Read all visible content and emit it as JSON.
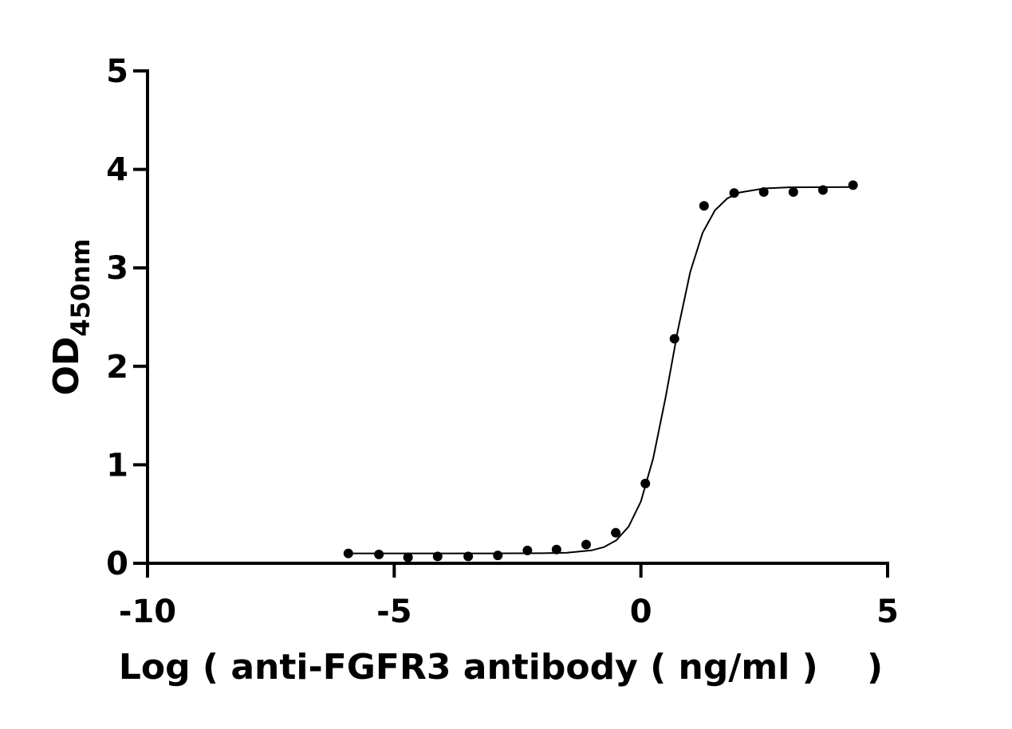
{
  "chart_data": {
    "type": "scatter",
    "x_label": "Log ( anti-FGFR3 antibody ( ng/ml )    )",
    "y_label": "OD",
    "y_label_sub": "450nm",
    "xlim": [
      -10,
      5
    ],
    "xticks": [
      -10,
      -5,
      0,
      5
    ],
    "ylim": [
      0,
      5
    ],
    "yticks": [
      0,
      1,
      2,
      3,
      4,
      5
    ],
    "series": [
      {
        "mode": "markers",
        "color": "#000000",
        "x": [
          -5.93,
          -5.31,
          -4.72,
          -4.12,
          -3.5,
          -2.9,
          -2.3,
          -1.71,
          -1.11,
          -0.51,
          0.09,
          0.68,
          1.28,
          1.89,
          2.49,
          3.09,
          3.69,
          4.3
        ],
        "values": [
          0.1,
          0.09,
          0.06,
          0.07,
          0.07,
          0.08,
          0.13,
          0.14,
          0.19,
          0.31,
          0.81,
          2.28,
          3.63,
          3.76,
          3.77,
          3.77,
          3.79,
          3.84
        ]
      },
      {
        "mode": "line",
        "color": "#000000",
        "x": [
          -6,
          -5,
          -4,
          -3,
          -2,
          -1.5,
          -1,
          -0.75,
          -0.5,
          -0.25,
          0,
          0.25,
          0.5,
          0.75,
          1,
          1.25,
          1.5,
          1.75,
          2,
          2.5,
          3,
          4.3
        ],
        "values": [
          0.1,
          0.1,
          0.1,
          0.1,
          0.102,
          0.107,
          0.131,
          0.164,
          0.233,
          0.371,
          0.629,
          1.066,
          1.684,
          2.371,
          2.957,
          3.355,
          3.584,
          3.705,
          3.765,
          3.807,
          3.818,
          3.82
        ]
      }
    ]
  }
}
